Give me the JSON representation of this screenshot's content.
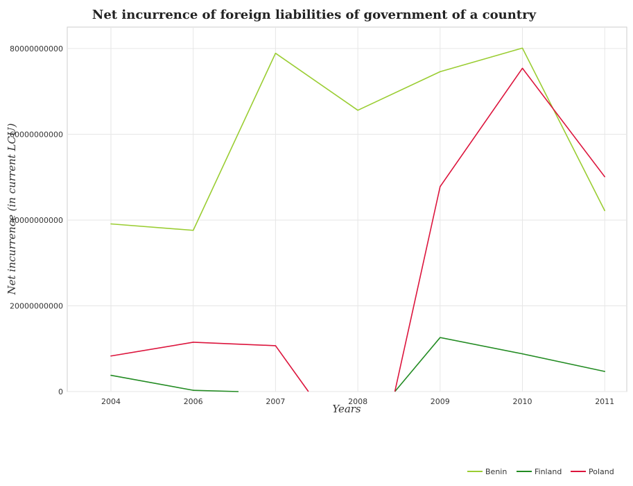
{
  "chart_data": {
    "type": "line",
    "title": "Net incurrence of foreign liabilities of government of a country",
    "xlabel": "Years",
    "ylabel": "Net incurrence (in current LCU)",
    "categories": [
      "2004",
      "2006",
      "2007",
      "2008",
      "2009",
      "2010",
      "2011"
    ],
    "ylim": [
      0,
      85000000000
    ],
    "yticks": [
      0,
      20000000000,
      40000000000,
      60000000000,
      80000000000
    ],
    "ytick_labels": [
      "0",
      "20000000000",
      "40000000000",
      "60000000000",
      "80000000000"
    ],
    "grid": true,
    "legend_position": "bottom-right",
    "series": [
      {
        "name": "Benin",
        "color": "#9acd32",
        "values": [
          39100000000,
          37600000000,
          78900000000,
          65600000000,
          74600000000,
          80100000000,
          42200000000
        ]
      },
      {
        "name": "Finland",
        "color": "#228b22",
        "values": [
          3800000000,
          300000000,
          null,
          null,
          12600000000,
          8800000000,
          4700000000
        ]
      },
      {
        "name": "Poland",
        "color": "#dc143c",
        "values": [
          8300000000,
          11500000000,
          10700000000,
          null,
          47800000000,
          75400000000,
          50100000000
        ]
      }
    ]
  }
}
